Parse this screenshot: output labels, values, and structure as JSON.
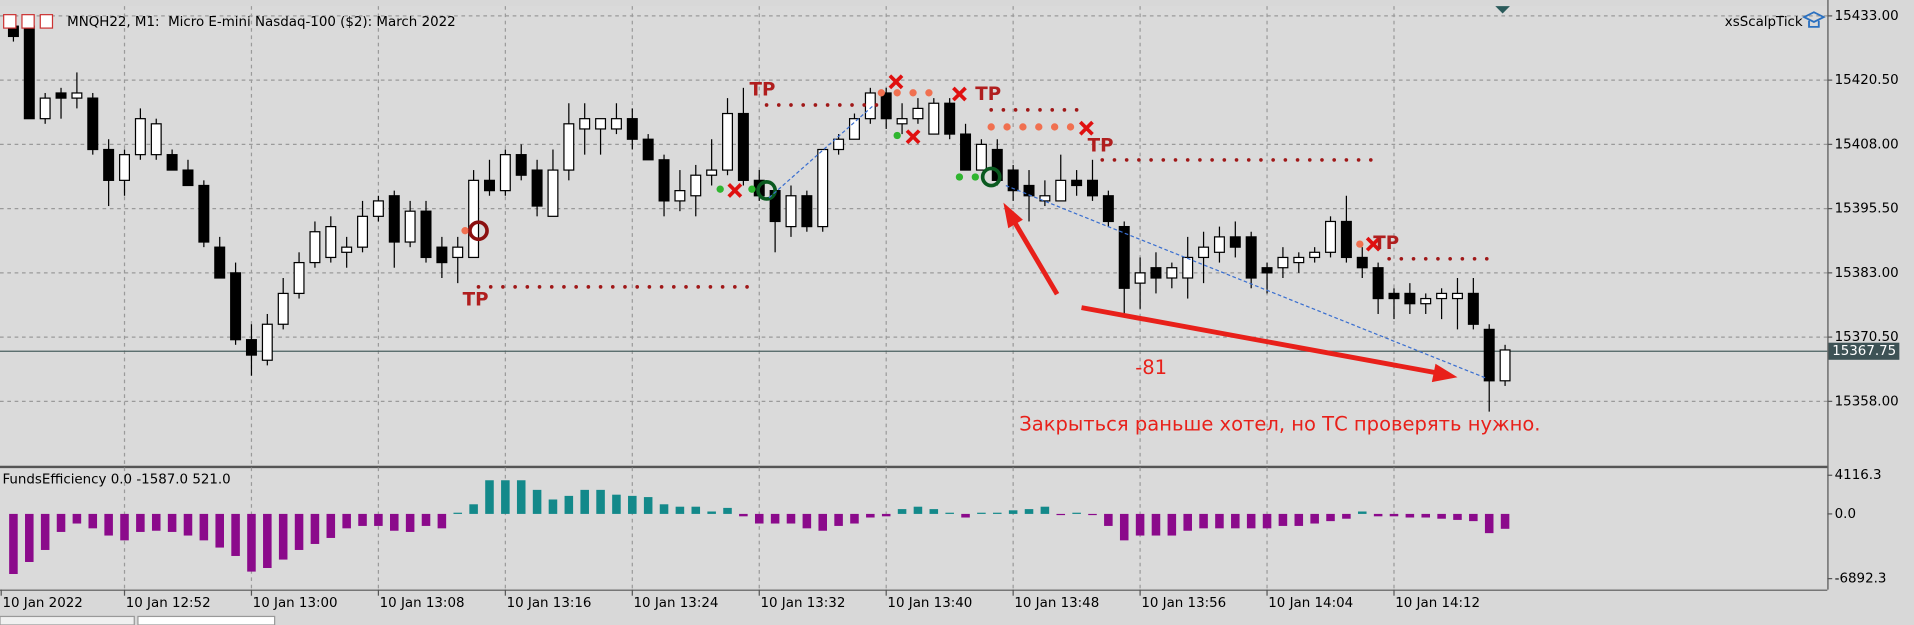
{
  "chart_data": [
    {
      "type": "candlestick",
      "title": "MNQH22, M1:  Micro E-mini Nasdaq-100 ($2): March 2022",
      "expert": "xsScalpTick",
      "up_color": "#ffffff",
      "down_color": "#000000",
      "grid": true,
      "ylim": [
        15345.6,
        15434.9
      ],
      "yticks": [
        {
          "value": 15433,
          "label": "15433.00"
        },
        {
          "value": 15420.5,
          "label": "15420.50"
        },
        {
          "value": 15408,
          "label": "15408.00"
        },
        {
          "value": 15395.5,
          "label": "15395.50"
        },
        {
          "value": 15383,
          "label": "15383.00"
        },
        {
          "value": 15370.5,
          "label": "15370.50"
        },
        {
          "value": 15358,
          "label": "15358.00"
        }
      ],
      "xticks": [
        "10 Jan 2022",
        "10 Jan 12:52",
        "10 Jan 13:00",
        "10 Jan 13:08",
        "10 Jan 13:16",
        "10 Jan 13:24",
        "10 Jan 13:32",
        "10 Jan 13:40",
        "10 Jan 13:48",
        "10 Jan 13:56",
        "10 Jan 14:04",
        "10 Jan 14:12"
      ],
      "last_price": {
        "value": 15367.75,
        "label": "15367.75"
      },
      "open": [
        15431,
        15431,
        15413,
        15418,
        15417,
        15417,
        15407,
        15401,
        15406,
        15406,
        15406,
        15403,
        15400,
        15388,
        15383,
        15370,
        15366,
        15373,
        15379,
        15385,
        15386,
        15387,
        15388,
        15394,
        15398,
        15389,
        15395,
        15388,
        15386,
        15386,
        15401,
        15399,
        15406,
        15403,
        15394,
        15403,
        15411,
        15411,
        15411,
        15413,
        15409,
        15405,
        15397,
        15398,
        15402,
        15403,
        15414,
        15401,
        15399,
        15392,
        15398,
        15392,
        15407,
        15409,
        15413,
        15418,
        15412,
        15413,
        15410,
        15416,
        15410,
        15403,
        15407,
        15403,
        15400,
        15397,
        15397,
        15401,
        15401,
        15398,
        15392,
        15381,
        15384,
        15382,
        15382,
        15386,
        15387,
        15390,
        15390,
        15384,
        15384,
        15385,
        15386,
        15387,
        15393,
        15386,
        15384,
        15379,
        15379,
        15377,
        15378,
        15378,
        15379,
        15372,
        15362
      ],
      "high": [
        15432,
        15432,
        15418,
        15419,
        15422,
        15418,
        15409,
        15407,
        15415,
        15413,
        15407,
        15405,
        15401,
        15390,
        15385,
        15373,
        15375,
        15382,
        15387,
        15393,
        15394,
        15390,
        15397,
        15398,
        15399,
        15397,
        15397,
        15390,
        15390,
        15403,
        15405,
        15407,
        15408,
        15405,
        15407,
        15416,
        15416,
        15413,
        15416,
        15415,
        15410,
        15406,
        15403,
        15404,
        15409,
        15417,
        15419,
        15403,
        15399,
        15400,
        15399,
        15407,
        15410,
        15414,
        15419,
        15419,
        15416,
        15417,
        15417,
        15417,
        15412,
        15409,
        15409,
        15404,
        15403,
        15401,
        15406,
        15403,
        15405,
        15399,
        15393,
        15386,
        15387,
        15385,
        15390,
        15391,
        15392,
        15393,
        15391,
        15385,
        15388,
        15387,
        15388,
        15394,
        15398,
        15388,
        15385,
        15380,
        15381,
        15379,
        15380,
        15382,
        15382,
        15373,
        15369
      ],
      "low": [
        15428,
        15413,
        15412,
        15413,
        15415,
        15406,
        15396,
        15398,
        15405,
        15405,
        15403,
        15400,
        15388,
        15382,
        15369,
        15363,
        15365,
        15372,
        15378,
        15384,
        15385,
        15384,
        15387,
        15393,
        15384,
        15388,
        15385,
        15382,
        15381,
        15386,
        15398,
        15398,
        15401,
        15394,
        15394,
        15401,
        15406,
        15406,
        15410,
        15407,
        15405,
        15394,
        15395,
        15394,
        15400,
        15402,
        15400,
        15397,
        15387,
        15390,
        15391,
        15391,
        15406,
        15409,
        15412,
        15411,
        15410,
        15412,
        15410,
        15409,
        15403,
        15403,
        15400,
        15397,
        15393,
        15396,
        15397,
        15398,
        15397,
        15392,
        15375,
        15376,
        15379,
        15380,
        15378,
        15381,
        15385,
        15386,
        15380,
        15379,
        15382,
        15383,
        15385,
        15386,
        15385,
        15382,
        15375,
        15374,
        15375,
        15375,
        15374,
        15372,
        15372,
        15356,
        15361
      ],
      "close": [
        15429,
        15413,
        15417,
        15417,
        15418,
        15407,
        15401,
        15406,
        15413,
        15412,
        15403,
        15400,
        15389,
        15382,
        15370,
        15367,
        15373,
        15379,
        15385,
        15391,
        15392,
        15388,
        15394,
        15397,
        15389,
        15395,
        15386,
        15385,
        15388,
        15401,
        15399,
        15406,
        15402,
        15396,
        15403,
        15412,
        15413,
        15413,
        15413,
        15409,
        15405,
        15397,
        15399,
        15402,
        15403,
        15414,
        15401,
        15398,
        15393,
        15398,
        15392,
        15407,
        15409,
        15413,
        15418,
        15413,
        15413,
        15415,
        15416,
        15410,
        15403,
        15408,
        15401,
        15399,
        15398,
        15398,
        15401,
        15400,
        15398,
        15393,
        15380,
        15383,
        15382,
        15384,
        15386,
        15388,
        15390,
        15388,
        15382,
        15383,
        15386,
        15386,
        15387,
        15393,
        15386,
        15384,
        15378,
        15378,
        15377,
        15378,
        15379,
        15379,
        15373,
        15362,
        15368
      ],
      "annotations": {
        "tp": [
          "TP",
          "TP",
          "TP",
          "TP",
          "TP"
        ],
        "result": "-81",
        "note": "Закрыться раньше хотел, но ТС проверять нужно."
      }
    },
    {
      "type": "bar",
      "title": "FundsEfficiency 0.0 -1587.0 521.0",
      "positive_color": "#13898a",
      "negative_color": "#8b0a8b",
      "ylim": [
        -7930,
        4810
      ],
      "yticks": [
        4116.3,
        {
          "value": 0,
          "label": "0.0"
        },
        -6892.3
      ],
      "values": [
        -6400,
        -5120,
        -3840,
        -1920,
        -1024,
        -1536,
        -2304,
        -2816,
        -1920,
        -1792,
        -1920,
        -2304,
        -2816,
        -3584,
        -4480,
        -6144,
        -5760,
        -4864,
        -3840,
        -3200,
        -2560,
        -1536,
        -1280,
        -1280,
        -1792,
        -1920,
        -1280,
        -1536,
        128,
        1024,
        3584,
        3584,
        3584,
        2560,
        1536,
        1920,
        2560,
        2560,
        2048,
        1920,
        1792,
        1024,
        768,
        768,
        256,
        640,
        -256,
        -1024,
        -1024,
        -1024,
        -1536,
        -1792,
        -1280,
        -1024,
        -384,
        -256,
        512,
        768,
        512,
        128,
        -384,
        128,
        128,
        384,
        512,
        768,
        -128,
        128,
        -128,
        -1280,
        -2816,
        -2304,
        -2304,
        -2304,
        -1792,
        -1536,
        -1536,
        -1536,
        -1536,
        -1536,
        -1280,
        -1280,
        -1024,
        -768,
        -512,
        256,
        -256,
        -256,
        -384,
        -384,
        -512,
        -640,
        -768,
        -2048,
        -1587
      ]
    }
  ]
}
